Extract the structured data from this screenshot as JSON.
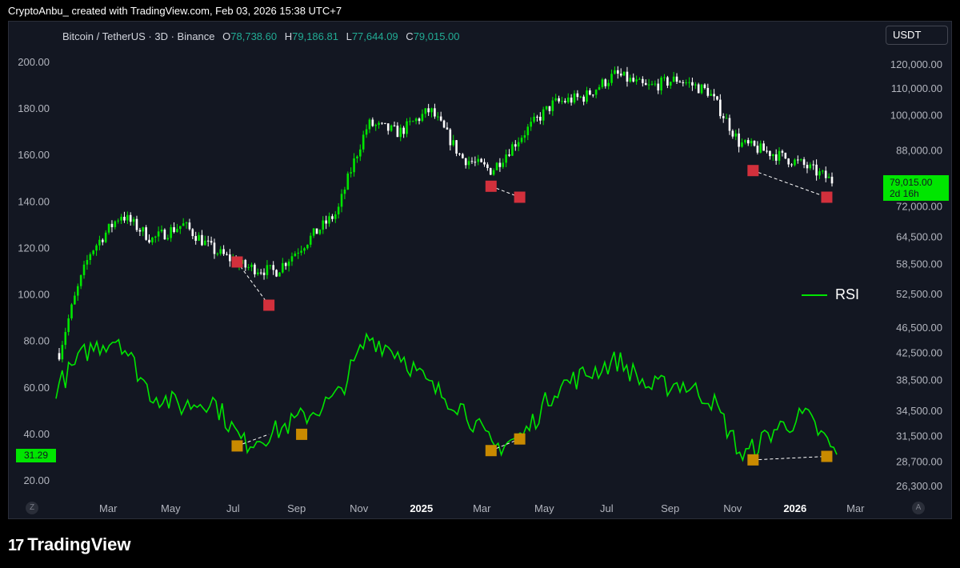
{
  "header": {
    "text": "CryptoAnbu_ created with TradingView.com, Feb 03, 2026 15:38 UTC+7"
  },
  "legend": {
    "symbol": "Bitcoin / TetherUS · 3D · Binance",
    "open_label": "O",
    "open": "78,738.60",
    "high_label": "H",
    "high": "79,186.81",
    "low_label": "L",
    "low": "77,644.09",
    "close_label": "C",
    "close": "79,015.00"
  },
  "currency_button": "USDT",
  "price_tag": {
    "price": "79,015.00",
    "countdown": "2d 16h"
  },
  "rsi_tag": "31.29",
  "rsi_legend": "RSI",
  "corner_left": "Z",
  "corner_right": "A",
  "brand": "TradingView",
  "colors": {
    "background": "#131722",
    "rsi": "#00e600",
    "up": "#00e600",
    "down": "#ffffff",
    "bull_marker": "#c98a00",
    "bear_marker": "#d2303c",
    "grid": "#1e222d",
    "axis_text": "#b2b5be"
  },
  "chart_data": {
    "type": "line",
    "title": "Bitcoin / TetherUS · 3D · Binance",
    "x_ticks": [
      "Mar",
      "May",
      "Jul",
      "Sep",
      "Nov",
      "2025",
      "Mar",
      "May",
      "Jul",
      "Sep",
      "Nov",
      "2026",
      "Mar"
    ],
    "x_tick_bold": [
      false,
      false,
      false,
      false,
      false,
      true,
      false,
      false,
      false,
      false,
      false,
      true,
      false
    ],
    "left_axis_ticks": [
      "200.00",
      "180.00",
      "160.00",
      "140.00",
      "120.00",
      "100.00",
      "80.00",
      "60.00",
      "40.00",
      "20.00"
    ],
    "left_axis_values": [
      200,
      180,
      160,
      140,
      120,
      100,
      80,
      60,
      40,
      20
    ],
    "right_axis_ticks": [
      "120,000.00",
      "110,000.00",
      "100,000.00",
      "88,000.00",
      "72,000.00",
      "64,500.00",
      "58,500.00",
      "52,500.00",
      "46,500.00",
      "42,500.00",
      "38,500.00",
      "34,500.00",
      "31,500.00",
      "28,700.00",
      "26,300.00"
    ],
    "right_axis_values": [
      120000,
      110000,
      100000,
      88000,
      72000,
      64500,
      58500,
      52500,
      46500,
      42500,
      38500,
      34500,
      31500,
      28700,
      26300
    ],
    "right_axis_scale": "log",
    "price_series": {
      "name": "BTCUSDT (candles)",
      "dates": [
        "2024-01",
        "2024-02",
        "2024-03",
        "2024-04",
        "2024-05",
        "2024-06",
        "2024-07",
        "2024-08",
        "2024-09",
        "2024-10",
        "2024-11",
        "2024-12",
        "2025-01",
        "2025-02",
        "2025-03",
        "2025-04",
        "2025-05",
        "2025-06",
        "2025-07",
        "2025-08",
        "2025-09",
        "2025-10",
        "2025-11",
        "2025-12",
        "2026-01",
        "2026-02"
      ],
      "close": [
        42500,
        61000,
        70000,
        64000,
        67500,
        61500,
        58000,
        57000,
        63500,
        70500,
        97000,
        94000,
        102000,
        86000,
        82000,
        93500,
        104500,
        107000,
        116000,
        110500,
        114000,
        109000,
        90500,
        87500,
        84000,
        79015
      ]
    },
    "rsi_series": {
      "name": "RSI",
      "dates": [
        "2024-01",
        "2024-02",
        "2024-03",
        "2024-04",
        "2024-05",
        "2024-06",
        "2024-07",
        "2024-08",
        "2024-09",
        "2024-10",
        "2024-11",
        "2024-12",
        "2025-01",
        "2025-02",
        "2025-03",
        "2025-04",
        "2025-05",
        "2025-06",
        "2025-07",
        "2025-08",
        "2025-09",
        "2025-10",
        "2025-11",
        "2025-12",
        "2026-01",
        "2026-02"
      ],
      "values": [
        60,
        76,
        82,
        58,
        52,
        55,
        36,
        41,
        48,
        56,
        82,
        75,
        60,
        52,
        34,
        40,
        60,
        66,
        72,
        60,
        62,
        55,
        30,
        42,
        48,
        31.29
      ]
    },
    "annotations": {
      "bearish_markers_price": [
        [
          "2024-07-05",
          59000
        ],
        [
          "2024-08-05",
          50500
        ],
        [
          "2025-03-10",
          77500
        ],
        [
          "2025-04-07",
          74500
        ],
        [
          "2025-11-21",
          82000
        ],
        [
          "2026-02-01",
          74500
        ]
      ],
      "bullish_markers_rsi": [
        [
          "2024-07-05",
          35
        ],
        [
          "2024-09-06",
          40
        ],
        [
          "2025-03-10",
          33
        ],
        [
          "2025-04-07",
          38
        ],
        [
          "2025-11-21",
          29
        ],
        [
          "2026-02-01",
          30.5
        ]
      ],
      "divergence_lines_price": [
        [
          [
            "2024-07-05",
            59000
          ],
          [
            "2024-08-05",
            50500
          ]
        ],
        [
          [
            "2025-03-10",
            77500
          ],
          [
            "2025-04-07",
            74500
          ]
        ],
        [
          [
            "2025-11-21",
            82000
          ],
          [
            "2026-02-01",
            74500
          ]
        ]
      ],
      "divergence_lines_rsi": [
        [
          [
            "2024-07-05",
            35
          ],
          [
            "2024-08-05",
            40
          ]
        ],
        [
          [
            "2025-03-10",
            33
          ],
          [
            "2025-04-07",
            38
          ]
        ],
        [
          [
            "2025-11-21",
            29
          ],
          [
            "2026-02-01",
            30.5
          ]
        ]
      ]
    },
    "legend_position": "right",
    "grid": false
  }
}
